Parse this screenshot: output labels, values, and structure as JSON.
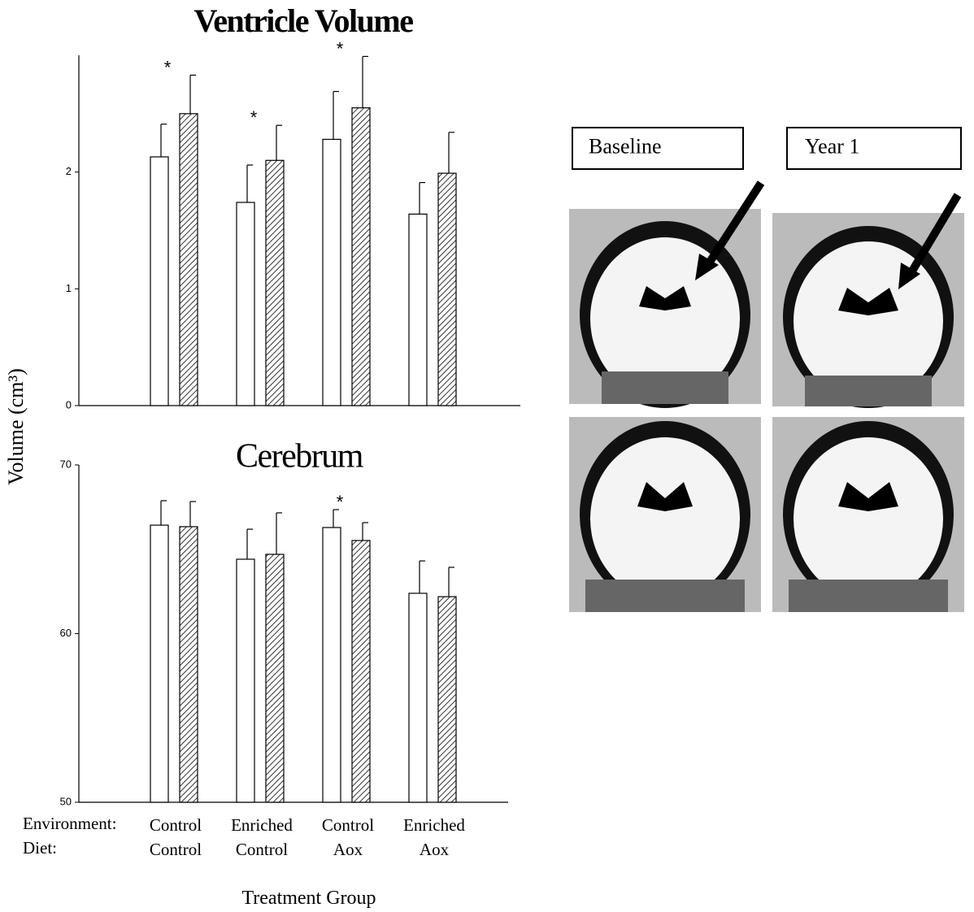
{
  "chart_data": [
    {
      "type": "bar",
      "title": "Ventricle Volume",
      "title_weight": "bold",
      "categories": [
        null,
        null,
        null,
        null
      ],
      "series": [
        {
          "color": "#ffffff",
          "pattern": "none",
          "values": [
            2.13,
            1.74,
            2.28,
            1.64
          ],
          "errors": [
            0.28,
            0.32,
            0.41,
            0.27
          ]
        },
        {
          "color": "#ffffff",
          "pattern": "hatch",
          "values": [
            2.5,
            2.1,
            2.55,
            1.99
          ],
          "errors": [
            0.33,
            0.3,
            0.44,
            0.35
          ]
        }
      ],
      "ylim": [
        0,
        3
      ],
      "yticks": [
        0,
        1,
        2
      ],
      "grid": false,
      "annotations": [
        {
          "text": "*",
          "category": 0
        },
        {
          "text": "*",
          "category": 1
        },
        {
          "text": "*",
          "category": 2
        }
      ]
    },
    {
      "type": "bar",
      "title": "Cerebrum",
      "title_weight": "normal",
      "categories": [
        "Control",
        "Enriched",
        "Control",
        "Enriched"
      ],
      "diet": [
        "Control",
        "Control",
        "Aox",
        "Aox"
      ],
      "row_labels": [
        "Environment:",
        "Diet:"
      ],
      "xlabel": "Treatment Group",
      "series": [
        {
          "color": "#ffffff",
          "pattern": "none",
          "values": [
            66.43,
            64.41,
            66.29,
            62.39
          ],
          "errors": [
            1.45,
            1.78,
            1.06,
            1.92
          ]
        },
        {
          "color": "#ffffff",
          "pattern": "hatch",
          "values": [
            66.34,
            64.7,
            65.52,
            62.19
          ],
          "errors": [
            1.49,
            2.46,
            1.06,
            1.74
          ]
        }
      ],
      "ylim": [
        50,
        70
      ],
      "yticks": [
        50,
        60,
        70
      ],
      "grid": false,
      "annotations": [
        {
          "text": "*",
          "category": 2
        }
      ]
    }
  ],
  "ylabel": "Volume (cm³)",
  "images": {
    "labels": [
      "Baseline",
      "Year 1"
    ]
  }
}
